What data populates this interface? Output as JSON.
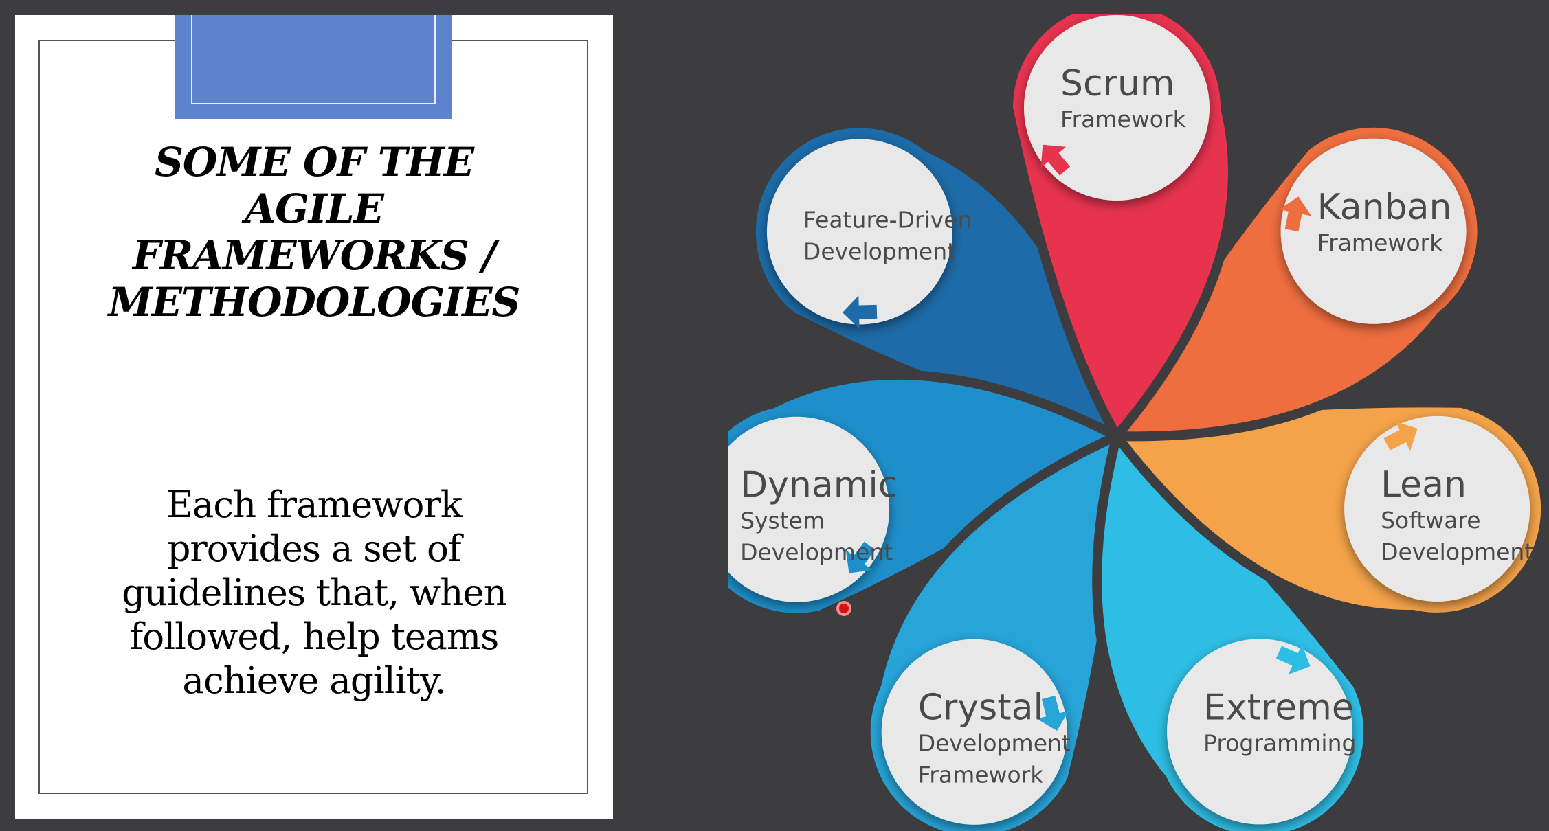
{
  "slide": {
    "title_lines": [
      "SOME OF THE",
      "AGILE",
      "FRAMEWORKS /",
      "METHODOLOGIES"
    ],
    "body_lines": [
      "Each framework",
      "provides a set of",
      "guidelines that, when",
      "followed, help teams",
      "achieve agility."
    ]
  },
  "diagram": {
    "nodes": [
      {
        "id": "scrum",
        "title": "Scrum",
        "subtitle": [
          "Framework"
        ],
        "color": "#e8334f"
      },
      {
        "id": "kanban",
        "title": "Kanban",
        "subtitle": [
          "Framework"
        ],
        "color": "#ef6e3f"
      },
      {
        "id": "lean",
        "title": "Lean",
        "subtitle": [
          "Software",
          "Development"
        ],
        "color": "#f4a34a"
      },
      {
        "id": "extreme",
        "title": "Extreme",
        "subtitle": [
          "Programming"
        ],
        "color": "#2ebde4"
      },
      {
        "id": "crystal",
        "title": "Crystal",
        "subtitle": [
          "Development",
          "Framework"
        ],
        "color": "#27a4d8"
      },
      {
        "id": "dynamic",
        "title": "Dynamic",
        "subtitle": [
          "System",
          "Development"
        ],
        "color": "#1e8fcb"
      },
      {
        "id": "fdd",
        "title": "",
        "subtitle": [
          "Feature-Driven",
          "Development"
        ],
        "color": "#1d6ba8"
      }
    ]
  }
}
